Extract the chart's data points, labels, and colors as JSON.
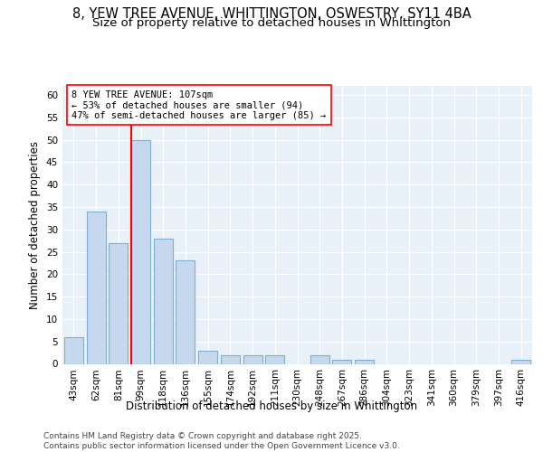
{
  "title_line1": "8, YEW TREE AVENUE, WHITTINGTON, OSWESTRY, SY11 4BA",
  "title_line2": "Size of property relative to detached houses in Whittington",
  "xlabel": "Distribution of detached houses by size in Whittington",
  "ylabel": "Number of detached properties",
  "footer": "Contains HM Land Registry data © Crown copyright and database right 2025.\nContains public sector information licensed under the Open Government Licence v3.0.",
  "categories": [
    "43sqm",
    "62sqm",
    "81sqm",
    "99sqm",
    "118sqm",
    "136sqm",
    "155sqm",
    "174sqm",
    "192sqm",
    "211sqm",
    "230sqm",
    "248sqm",
    "267sqm",
    "286sqm",
    "304sqm",
    "323sqm",
    "341sqm",
    "360sqm",
    "379sqm",
    "397sqm",
    "416sqm"
  ],
  "values": [
    6,
    34,
    27,
    50,
    28,
    23,
    3,
    2,
    2,
    2,
    0,
    2,
    1,
    1,
    0,
    0,
    0,
    0,
    0,
    0,
    1
  ],
  "bar_color": "#c5d8ed",
  "bar_edge_color": "#7faecf",
  "background_color": "#e8f0f8",
  "grid_color": "#ffffff",
  "red_line_index": 3,
  "annotation_line1": "8 YEW TREE AVENUE: 107sqm",
  "annotation_line2": "← 53% of detached houses are smaller (94)",
  "annotation_line3": "47% of semi-detached houses are larger (85) →",
  "ylim": [
    0,
    62
  ],
  "yticks": [
    0,
    5,
    10,
    15,
    20,
    25,
    30,
    35,
    40,
    45,
    50,
    55,
    60
  ],
  "title_fontsize": 10.5,
  "subtitle_fontsize": 9.5,
  "axis_label_fontsize": 8.5,
  "tick_fontsize": 7.5,
  "annotation_fontsize": 7.5,
  "footer_fontsize": 6.5
}
